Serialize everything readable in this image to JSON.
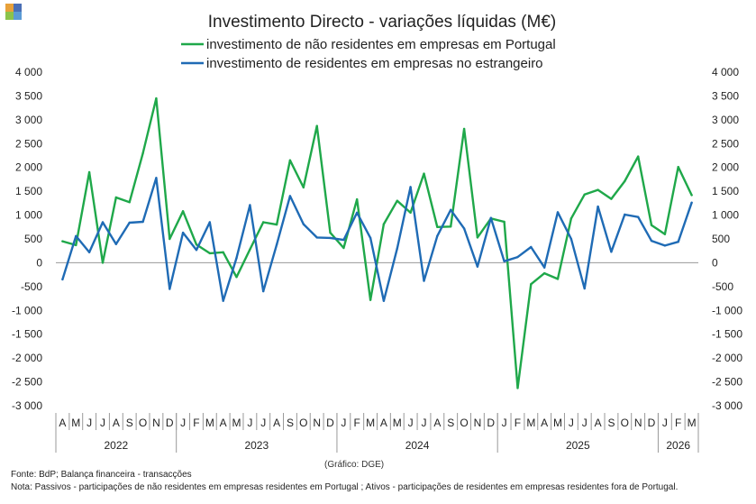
{
  "logo": {
    "alt": "BdP",
    "colors": [
      "#e8a13a",
      "#4a6fb5",
      "#8bc34a",
      "#5b9bd5"
    ]
  },
  "chart_data": {
    "type": "line",
    "title": "Investimento Directo - variações líquidas (M€)",
    "ylim": [
      -3000,
      4000
    ],
    "yticks": [
      -3000,
      -2500,
      -2000,
      -1500,
      -1000,
      -500,
      0,
      500,
      1000,
      1500,
      2000,
      2500,
      3000,
      3500,
      4000
    ],
    "ytick_labels": [
      "-3 000",
      "-2 500",
      "-2 000",
      "-1 500",
      "-1 000",
      "-500",
      "0",
      "500",
      "1 000",
      "1 500",
      "2 000",
      "2 500",
      "3 000",
      "3 500",
      "4 000"
    ],
    "legend_position": "top",
    "grid": false,
    "x": [
      "A",
      "M",
      "J",
      "J",
      "A",
      "S",
      "O",
      "N",
      "D",
      "J",
      "F",
      "M",
      "A",
      "M",
      "J",
      "J",
      "A",
      "S",
      "O",
      "N",
      "D",
      "J",
      "F",
      "M",
      "A",
      "M",
      "J",
      "J",
      "A",
      "S",
      "O",
      "N",
      "D",
      "J",
      "F",
      "M",
      "A",
      "M",
      "J",
      "J",
      "A",
      "S",
      "O",
      "N",
      "D",
      "J",
      "F",
      "M"
    ],
    "years": [
      {
        "label": "2022",
        "count": 9
      },
      {
        "label": "2023",
        "count": 12
      },
      {
        "label": "2024",
        "count": 12
      },
      {
        "label": "2025",
        "count": 12
      },
      {
        "label": "2026",
        "count": 3
      }
    ],
    "series": [
      {
        "name": "investimento de não residentes em empresas em Portugal",
        "color": "#1fa84a",
        "values": [
          450,
          370,
          1900,
          0,
          1370,
          1270,
          2300,
          3450,
          500,
          1080,
          380,
          200,
          220,
          -300,
          280,
          850,
          800,
          2150,
          1580,
          2870,
          630,
          310,
          1330,
          -780,
          810,
          1300,
          1050,
          1870,
          750,
          760,
          2810,
          530,
          930,
          860,
          -2630,
          -450,
          -220,
          -340,
          930,
          1430,
          1530,
          1340,
          1710,
          2230,
          790,
          600,
          2010,
          1420
        ]
      },
      {
        "name": "investimento de residentes em empresas no estrangeiro",
        "color": "#1f6bb5",
        "values": [
          -350,
          560,
          220,
          850,
          390,
          840,
          860,
          1780,
          -550,
          630,
          270,
          850,
          -800,
          100,
          1210,
          -600,
          380,
          1400,
          810,
          530,
          520,
          480,
          1050,
          520,
          -800,
          300,
          1590,
          -380,
          560,
          1110,
          720,
          -80,
          940,
          30,
          120,
          330,
          -100,
          1060,
          500,
          -540,
          1180,
          230,
          1010,
          960,
          460,
          360,
          440,
          1260
        ]
      }
    ]
  },
  "credit": "(Gráfico: DGE)",
  "footer": {
    "source": "Fonte: BdP; Balança financeira - transacções",
    "note": "Nota: Passivos - participações de não residentes em empresas residentes em Portugal ; Ativos - participações de residentes em empresas residentes fora de Portugal."
  }
}
